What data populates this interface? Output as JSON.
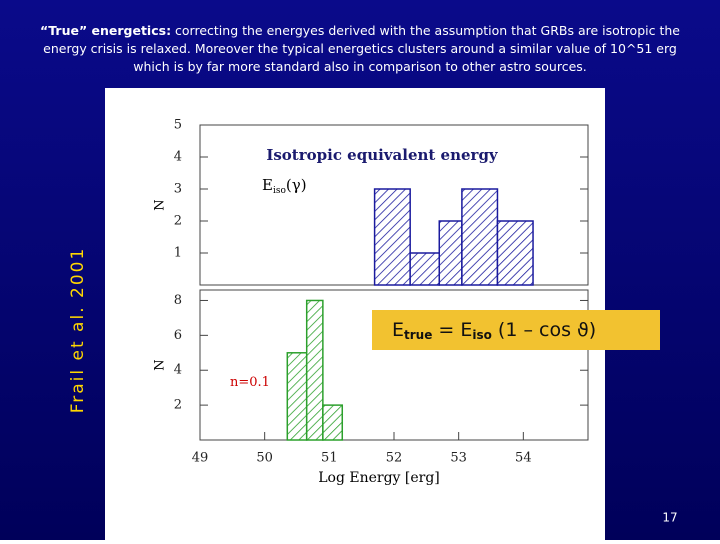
{
  "slide": {
    "title_bold": "“True” energetics:",
    "title_text": " correcting the energyes derived with the assumption that GRBs are isotropic the energy crisis is relaxed. Moreover the typical energetics clusters around a similar value of 10^51 erg which is by far more standard also in comparison to other astro sources.",
    "side_label": "Frail et al. 2001",
    "page_number": "17"
  },
  "chart_data": [
    {
      "type": "histogram",
      "title": "Isotropic equivalent energy",
      "y_label": "N",
      "annotation": [
        "E",
        "iso",
        "(γ)"
      ],
      "xlim": [
        49,
        55
      ],
      "ylim": [
        0,
        5
      ],
      "yticks": [
        1,
        2,
        3,
        4,
        5
      ],
      "bins": [
        51.7,
        52.25,
        52.7,
        53.05,
        53.6,
        54.15
      ],
      "series": [
        {
          "color": "#1a1a9e",
          "values": [
            3,
            1,
            2,
            3,
            2
          ]
        }
      ]
    },
    {
      "type": "histogram",
      "y_label": "N",
      "x_label": "Log Energy [erg]",
      "annotation": [
        "n=0.1"
      ],
      "formula": [
        "E",
        "true",
        " = E",
        "iso",
        " (1 – cos ϑ)"
      ],
      "xlim": [
        49,
        55
      ],
      "ylim": [
        0,
        8.6
      ],
      "xticks": [
        49,
        50,
        51,
        52,
        53,
        54
      ],
      "yticks": [
        2,
        4,
        6,
        8
      ],
      "bins": [
        50.35,
        50.65,
        50.9,
        51.2
      ],
      "series": [
        {
          "color": "#2ca02c",
          "values": [
            5,
            8,
            2
          ]
        }
      ]
    }
  ]
}
